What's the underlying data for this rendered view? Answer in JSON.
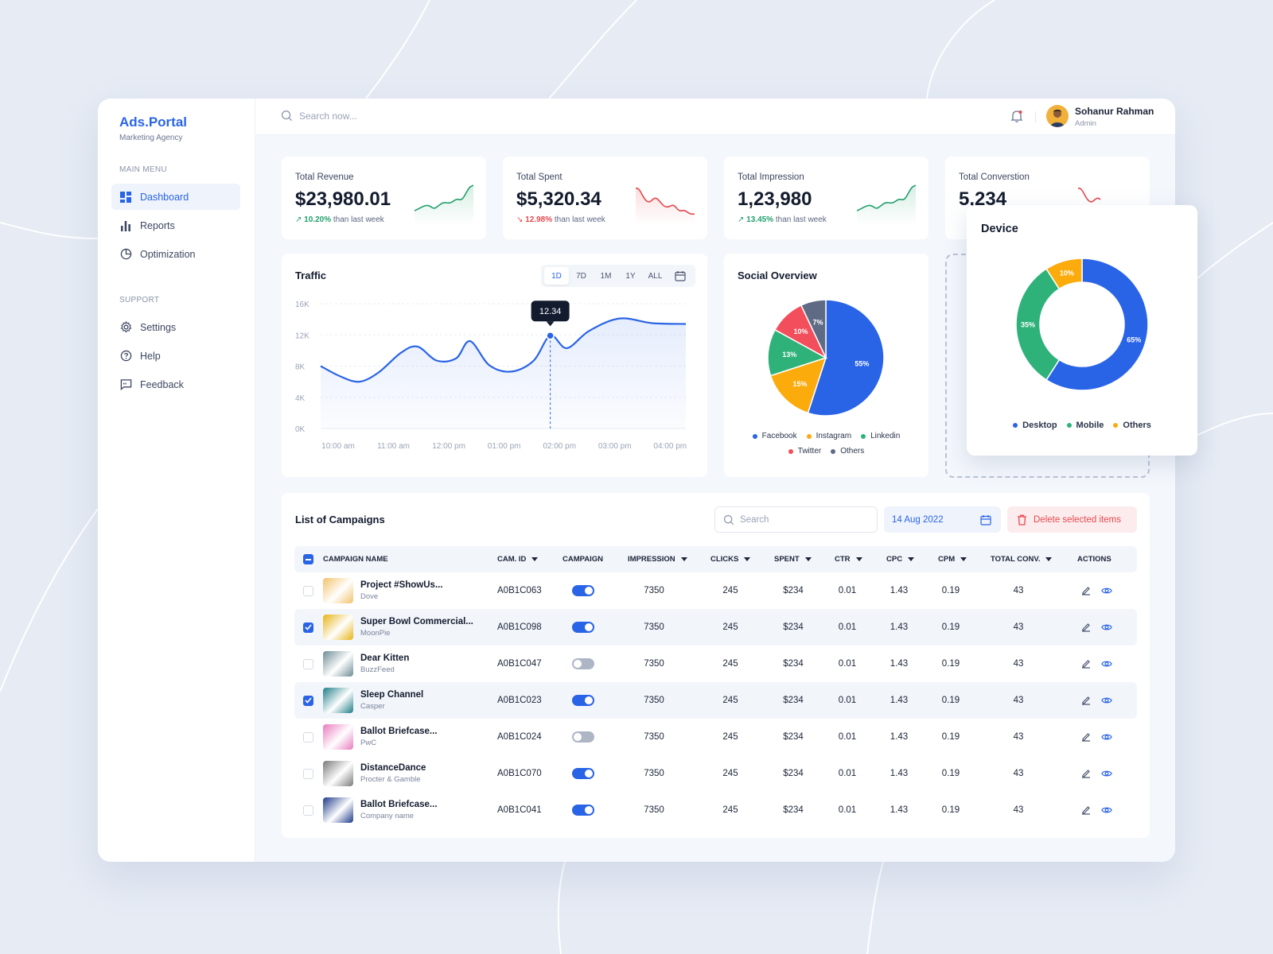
{
  "brand": {
    "name": "Ads.Portal",
    "tagline": "Marketing Agency"
  },
  "sidebar": {
    "main_heading": "MAIN MENU",
    "main_items": [
      {
        "label": "Dashboard",
        "icon": "dashboard-icon",
        "active": true
      },
      {
        "label": "Reports",
        "icon": "bar-chart-icon"
      },
      {
        "label": "Optimization",
        "icon": "pie-chart-icon"
      }
    ],
    "support_heading": "SUPPORT",
    "support_items": [
      {
        "label": "Settings",
        "icon": "gear-icon"
      },
      {
        "label": "Help",
        "icon": "help-icon"
      },
      {
        "label": "Feedback",
        "icon": "feedback-icon"
      }
    ]
  },
  "topbar": {
    "search_placeholder": "Search now...",
    "user_name": "Sohanur Rahman",
    "user_role": "Admin"
  },
  "stats": [
    {
      "title": "Total Revenue",
      "value": "$23,980.01",
      "change": "10.20%",
      "suffix": "than last week",
      "trend": "up"
    },
    {
      "title": "Total Spent",
      "value": "$5,320.34",
      "change": "12.98%",
      "suffix": "than last week",
      "trend": "down"
    },
    {
      "title": "Total Impression",
      "value": "1,23,980",
      "change": "13.45%",
      "suffix": "than last week",
      "trend": "up"
    },
    {
      "title": "Total Converstion",
      "value": "5,234",
      "change": "",
      "suffix": "",
      "trend": "down"
    }
  ],
  "traffic": {
    "title": "Traffic",
    "ranges": [
      "1D",
      "7D",
      "1M",
      "1Y",
      "ALL"
    ],
    "active_range": "1D",
    "tooltip": "12.34"
  },
  "social": {
    "title": "Social Overview"
  },
  "device": {
    "title": "Device"
  },
  "chart_data": [
    {
      "type": "line",
      "title": "Traffic",
      "x": [
        "10:00 am",
        "11:00 am",
        "12:00 pm",
        "01:00 pm",
        "02:00 pm",
        "03:00 pm",
        "04:00 pm"
      ],
      "y_ticks": [
        "16K",
        "12K",
        "8K",
        "4K",
        "0K"
      ],
      "ylim": [
        0,
        16000
      ],
      "points": [
        {
          "x": 0.0,
          "y": 8000
        },
        {
          "x": 0.35,
          "y": 6700
        },
        {
          "x": 0.7,
          "y": 6000
        },
        {
          "x": 1.05,
          "y": 7200
        },
        {
          "x": 1.45,
          "y": 9700
        },
        {
          "x": 1.75,
          "y": 10500
        },
        {
          "x": 2.1,
          "y": 8700
        },
        {
          "x": 2.45,
          "y": 9000
        },
        {
          "x": 2.7,
          "y": 11200
        },
        {
          "x": 3.05,
          "y": 8100
        },
        {
          "x": 3.45,
          "y": 7300
        },
        {
          "x": 3.85,
          "y": 8700
        },
        {
          "x": 4.15,
          "y": 11900
        },
        {
          "x": 4.45,
          "y": 10300
        },
        {
          "x": 4.85,
          "y": 12500
        },
        {
          "x": 5.4,
          "y": 14100
        },
        {
          "x": 6.0,
          "y": 13500
        },
        {
          "x": 6.6,
          "y": 13400
        }
      ],
      "highlight": {
        "x": 4.15,
        "y": 11900,
        "label": "12.34"
      },
      "color": "#2a64e6"
    },
    {
      "type": "pie",
      "title": "Social Overview",
      "slices": [
        {
          "name": "Facebook",
          "value": 55,
          "color": "#2a64e6"
        },
        {
          "name": "Instagram",
          "value": 15,
          "color": "#fbab0c"
        },
        {
          "name": "Linkedin",
          "value": 13,
          "color": "#2fb27a"
        },
        {
          "name": "Twitter",
          "value": 10,
          "color": "#f24e5b"
        },
        {
          "name": "Others",
          "value": 7,
          "color": "#5f6b85"
        }
      ]
    },
    {
      "type": "pie",
      "title": "Device",
      "donut": true,
      "slices": [
        {
          "name": "Desktop",
          "value": 65,
          "color": "#2a64e6"
        },
        {
          "name": "Mobile",
          "value": 35,
          "color": "#2fb27a"
        },
        {
          "name": "Others",
          "value": 10,
          "color": "#fbab0c"
        }
      ]
    }
  ],
  "campaigns": {
    "title": "List of Campaigns",
    "search_placeholder": "Search",
    "date": "14 Aug 2022",
    "delete_label": "Delete selected items",
    "columns": [
      "CAMPAIGN NAME",
      "CAM. ID",
      "CAMPAIGN",
      "IMPRESSION",
      "CLICKS",
      "SPENT",
      "CTR",
      "CPC",
      "CPM",
      "TOTAL CONV.",
      "ACTIONS"
    ],
    "rows": [
      {
        "name": "Project #ShowUs...",
        "brand": "Dove",
        "id": "A0B1C063",
        "active": true,
        "selected": false,
        "impression": "7350",
        "clicks": "245",
        "spent": "$234",
        "ctr": "0.01",
        "cpc": "1.43",
        "cpm": "0.19",
        "conv": "43",
        "thumb": "#f2c26b"
      },
      {
        "name": "Super Bowl Commercial...",
        "brand": "MoonPie",
        "id": "A0B1C098",
        "active": true,
        "selected": true,
        "impression": "7350",
        "clicks": "245",
        "spent": "$234",
        "ctr": "0.01",
        "cpc": "1.43",
        "cpm": "0.19",
        "conv": "43",
        "thumb": "#e7b315"
      },
      {
        "name": "Dear Kitten",
        "brand": "BuzzFeed",
        "id": "A0B1C047",
        "active": false,
        "selected": false,
        "impression": "7350",
        "clicks": "245",
        "spent": "$234",
        "ctr": "0.01",
        "cpc": "1.43",
        "cpm": "0.19",
        "conv": "43",
        "thumb": "#6e8c94"
      },
      {
        "name": "Sleep Channel",
        "brand": "Casper",
        "id": "A0B1C023",
        "active": true,
        "selected": true,
        "impression": "7350",
        "clicks": "245",
        "spent": "$234",
        "ctr": "0.01",
        "cpc": "1.43",
        "cpm": "0.19",
        "conv": "43",
        "thumb": "#1f7e86"
      },
      {
        "name": "Ballot Briefcase...",
        "brand": "PwC",
        "id": "A0B1C024",
        "active": false,
        "selected": false,
        "impression": "7350",
        "clicks": "245",
        "spent": "$234",
        "ctr": "0.01",
        "cpc": "1.43",
        "cpm": "0.19",
        "conv": "43",
        "thumb": "#e97bbf"
      },
      {
        "name": "DistanceDance",
        "brand": "Procter & Gamble",
        "id": "A0B1C070",
        "active": true,
        "selected": false,
        "impression": "7350",
        "clicks": "245",
        "spent": "$234",
        "ctr": "0.01",
        "cpc": "1.43",
        "cpm": "0.19",
        "conv": "43",
        "thumb": "#7a7a7a"
      },
      {
        "name": "Ballot Briefcase...",
        "brand": "Company name",
        "id": "A0B1C041",
        "active": true,
        "selected": false,
        "impression": "7350",
        "clicks": "245",
        "spent": "$234",
        "ctr": "0.01",
        "cpc": "1.43",
        "cpm": "0.19",
        "conv": "43",
        "thumb": "#1d3a8a"
      }
    ]
  }
}
